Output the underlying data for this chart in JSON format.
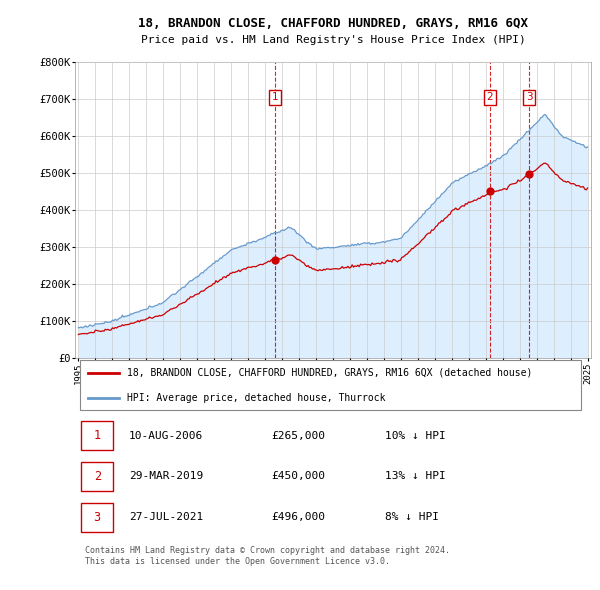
{
  "title": "18, BRANDON CLOSE, CHAFFORD HUNDRED, GRAYS, RM16 6QX",
  "subtitle": "Price paid vs. HM Land Registry's House Price Index (HPI)",
  "ylim": [
    0,
    800000
  ],
  "yticks": [
    0,
    100000,
    200000,
    300000,
    400000,
    500000,
    600000,
    700000,
    800000
  ],
  "ytick_labels": [
    "£0",
    "£100K",
    "£200K",
    "£300K",
    "£400K",
    "£500K",
    "£600K",
    "£700K",
    "£800K"
  ],
  "legend_line1": "18, BRANDON CLOSE, CHAFFORD HUNDRED, GRAYS, RM16 6QX (detached house)",
  "legend_line2": "HPI: Average price, detached house, Thurrock",
  "table_rows": [
    {
      "num": "1",
      "date": "10-AUG-2006",
      "price": "£265,000",
      "hpi": "10% ↓ HPI"
    },
    {
      "num": "2",
      "date": "29-MAR-2019",
      "price": "£450,000",
      "hpi": "13% ↓ HPI"
    },
    {
      "num": "3",
      "date": "27-JUL-2021",
      "price": "£496,000",
      "hpi": "8% ↓ HPI"
    }
  ],
  "footer": "Contains HM Land Registry data © Crown copyright and database right 2024.\nThis data is licensed under the Open Government Licence v3.0.",
  "sale_color": "#cc0000",
  "hpi_color": "#6699cc",
  "hpi_fill_color": "#ddeeff",
  "vline_color": "#cc0000",
  "sale_points": [
    {
      "year": 2006.6,
      "price": 265000,
      "label": "1"
    },
    {
      "year": 2019.25,
      "price": 450000,
      "label": "2"
    },
    {
      "year": 2021.57,
      "price": 496000,
      "label": "3"
    }
  ],
  "vline_years": [
    2006.6,
    2019.25,
    2021.57
  ],
  "xlim_left": 1994.8,
  "xlim_right": 2025.2,
  "x_start": 1995,
  "x_end": 2025
}
